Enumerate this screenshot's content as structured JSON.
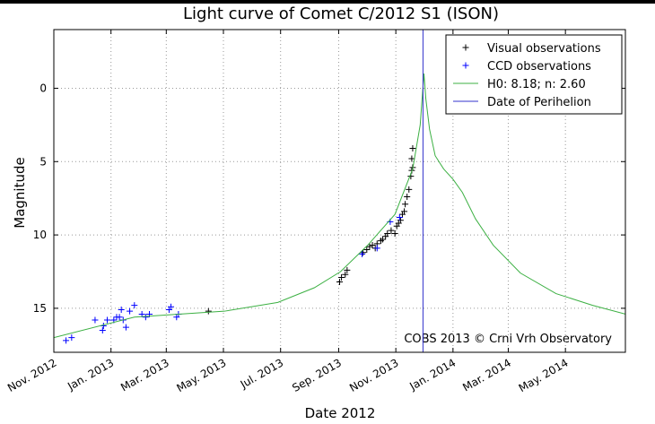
{
  "chart_data": {
    "type": "line",
    "title": "Light curve of Comet C/2012 S1 (ISON)",
    "xlabel": "Date 2012",
    "ylabel": "Magnitude",
    "annotation": "COBS 2013 © Crni Vrh Observatory",
    "xlim": [
      305,
      915
    ],
    "ylim": [
      -4,
      18
    ],
    "y_inverted": true,
    "grid": true,
    "legend": "upper right",
    "xticks": [
      {
        "value": 305,
        "label": "Nov. 2012"
      },
      {
        "value": 366,
        "label": "Jan. 2013"
      },
      {
        "value": 425,
        "label": "Mar. 2013"
      },
      {
        "value": 486,
        "label": "May. 2013"
      },
      {
        "value": 547,
        "label": "Jul. 2013"
      },
      {
        "value": 609,
        "label": "Sep. 2013"
      },
      {
        "value": 670,
        "label": "Nov. 2013"
      },
      {
        "value": 731,
        "label": "Jan. 2014"
      },
      {
        "value": 790,
        "label": "Mar. 2014"
      },
      {
        "value": 851,
        "label": "May. 2014"
      }
    ],
    "yticks": [
      0,
      5,
      10,
      15
    ],
    "series": [
      {
        "name": "Visual observations",
        "color": "#000000",
        "style": "marker",
        "x": [
          470,
          610,
          612,
          616,
          618,
          635,
          639,
          642,
          645,
          648,
          650,
          654,
          656,
          659,
          661,
          665,
          669,
          671,
          673,
          675,
          677,
          679,
          680,
          682,
          684,
          686,
          687,
          688,
          687,
          688
        ],
        "values": [
          15.2,
          13.2,
          12.9,
          12.7,
          12.4,
          11.2,
          11.0,
          10.8,
          10.7,
          10.9,
          10.6,
          10.4,
          10.3,
          10.1,
          9.9,
          9.7,
          9.9,
          9.4,
          9.2,
          9.0,
          8.6,
          8.4,
          7.9,
          7.4,
          6.9,
          6.0,
          5.6,
          5.4,
          4.8,
          4.1
        ]
      },
      {
        "name": "CCD observations",
        "color": "#0000ff",
        "style": "marker",
        "x": [
          318,
          324,
          349,
          357,
          358,
          362,
          369,
          372,
          375,
          377,
          379,
          382,
          386,
          391,
          399,
          403,
          407,
          428,
          430,
          436,
          438,
          634,
          650,
          664,
          674
        ],
        "values": [
          17.2,
          17.0,
          15.8,
          16.5,
          16.2,
          15.8,
          15.8,
          15.6,
          15.6,
          15.1,
          15.8,
          16.3,
          15.2,
          14.8,
          15.4,
          15.6,
          15.4,
          15.1,
          14.9,
          15.6,
          15.4,
          11.3,
          10.9,
          9.1,
          8.8
        ]
      },
      {
        "name": "H0: 8.18; n: 2.60",
        "color": "#3cb043",
        "style": "line",
        "x": [
          305,
          391,
          487,
          544,
          583,
          611,
          640,
          669,
          688,
          696,
          700,
          702,
          706,
          712,
          721,
          731,
          741,
          755,
          774,
          803,
          841,
          880,
          915
        ],
        "values": [
          17.0,
          15.6,
          15.2,
          14.6,
          13.6,
          12.5,
          10.7,
          8.6,
          5.5,
          2.5,
          -1.0,
          0.7,
          2.8,
          4.6,
          5.5,
          6.2,
          7.1,
          8.9,
          10.7,
          12.6,
          14.0,
          14.8,
          15.4
        ]
      }
    ],
    "vlines": [
      {
        "name": "Date of Perihelion",
        "color": "#3333cc",
        "x": 699
      }
    ]
  }
}
